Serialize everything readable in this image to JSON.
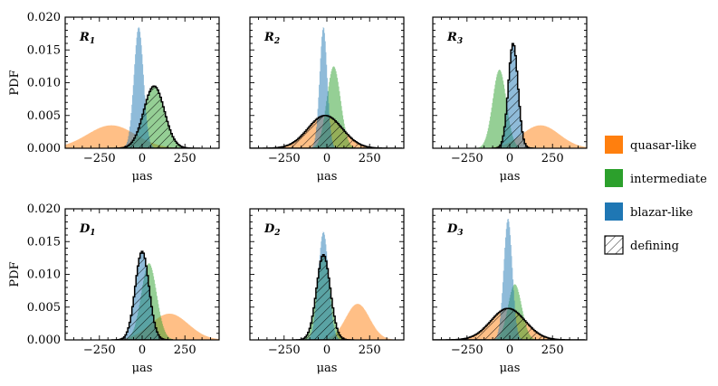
{
  "chart_data": {
    "type": "area",
    "title": "",
    "xlabel": "μas",
    "ylabel": "PDF",
    "xlim": [
      -450,
      450
    ],
    "ylim": [
      0,
      0.02
    ],
    "xticks": [
      -250,
      0,
      250
    ],
    "xtick_labels": [
      "−250",
      "0",
      "250"
    ],
    "yticks": [
      0,
      0.005,
      0.01,
      0.015,
      0.02
    ],
    "ytick_labels": [
      "0.000",
      "0.005",
      "0.010",
      "0.015",
      "0.020"
    ],
    "legend": {
      "position": "right",
      "entries": [
        {
          "key": "quasar",
          "label": "quasar-like",
          "color": "#ff7f0e"
        },
        {
          "key": "intermediate",
          "label": "intermediate",
          "color": "#2ca02c"
        },
        {
          "key": "blazar",
          "label": "blazar-like",
          "color": "#1f77b4"
        },
        {
          "key": "defining",
          "label": "defining",
          "color": "#000000"
        }
      ]
    },
    "panels": [
      {
        "label": "R",
        "sub": "1",
        "defining": "intermediate",
        "series": [
          {
            "name": "quasar-like",
            "mean": -180,
            "sd": 140,
            "peak": 0.0035
          },
          {
            "name": "intermediate",
            "mean": 70,
            "sd": 60,
            "peak": 0.0095
          },
          {
            "name": "blazar-like",
            "mean": -20,
            "sd": 28,
            "peak": 0.0185
          }
        ]
      },
      {
        "label": "R",
        "sub": "2",
        "defining": "quasar-like",
        "series": [
          {
            "name": "quasar-like",
            "mean": -10,
            "sd": 100,
            "peak": 0.005
          },
          {
            "name": "intermediate",
            "mean": 40,
            "sd": 40,
            "peak": 0.0125
          },
          {
            "name": "blazar-like",
            "mean": -20,
            "sd": 22,
            "peak": 0.0185
          }
        ]
      },
      {
        "label": "R",
        "sub": "3",
        "defining": "blazar-like",
        "series": [
          {
            "name": "quasar-like",
            "mean": 180,
            "sd": 110,
            "peak": 0.0035
          },
          {
            "name": "intermediate",
            "mean": -60,
            "sd": 40,
            "peak": 0.012
          },
          {
            "name": "blazar-like",
            "mean": 20,
            "sd": 28,
            "peak": 0.016
          }
        ]
      },
      {
        "label": "D",
        "sub": "1",
        "defining": "blazar-like",
        "series": [
          {
            "name": "quasar-like",
            "mean": 160,
            "sd": 110,
            "peak": 0.004
          },
          {
            "name": "intermediate",
            "mean": 40,
            "sd": 45,
            "peak": 0.0117
          },
          {
            "name": "blazar-like",
            "mean": 0,
            "sd": 40,
            "peak": 0.0135
          }
        ]
      },
      {
        "label": "D",
        "sub": "2",
        "defining": "intermediate",
        "series": [
          {
            "name": "quasar-like",
            "mean": 180,
            "sd": 70,
            "peak": 0.0055
          },
          {
            "name": "intermediate",
            "mean": -20,
            "sd": 40,
            "peak": 0.013
          },
          {
            "name": "blazar-like",
            "mean": -20,
            "sd": 30,
            "peak": 0.0165
          }
        ]
      },
      {
        "label": "D",
        "sub": "3",
        "defining": "quasar-like",
        "series": [
          {
            "name": "quasar-like",
            "mean": -10,
            "sd": 100,
            "peak": 0.0048
          },
          {
            "name": "intermediate",
            "mean": 30,
            "sd": 40,
            "peak": 0.0085
          },
          {
            "name": "blazar-like",
            "mean": -10,
            "sd": 25,
            "peak": 0.0185
          }
        ]
      }
    ]
  }
}
